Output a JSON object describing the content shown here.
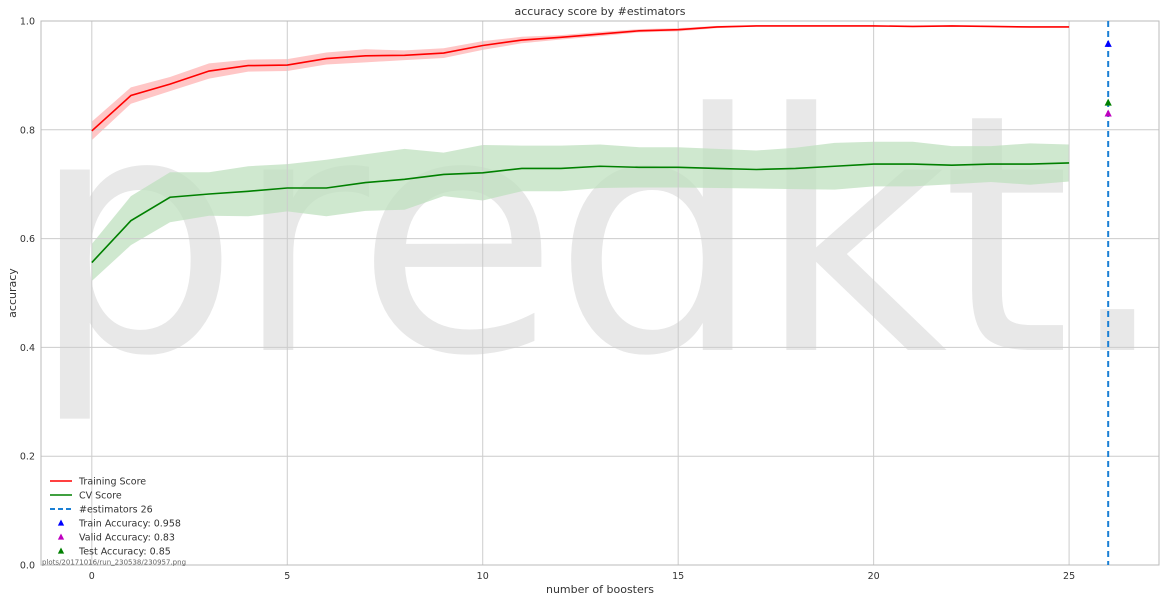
{
  "chart_data": {
    "type": "line",
    "title": "accuracy score by #estimators",
    "xlabel": "number of boosters",
    "ylabel": "accuracy",
    "xlim": [
      -1.3,
      27.3
    ],
    "ylim": [
      0.0,
      1.0
    ],
    "xticks": [
      0,
      5,
      10,
      15,
      20,
      25
    ],
    "yticks": [
      0.0,
      0.2,
      0.4,
      0.6,
      0.8,
      1.0
    ],
    "ytick_labels": [
      "0.0",
      "0.2",
      "0.4",
      "0.6",
      "0.8",
      "1.0"
    ],
    "grid": true,
    "legend_position": "lower-left",
    "x": [
      0,
      1,
      2,
      3,
      4,
      5,
      6,
      7,
      8,
      9,
      10,
      11,
      12,
      13,
      14,
      15,
      16,
      17,
      18,
      19,
      20,
      21,
      22,
      23,
      24,
      25
    ],
    "series": [
      {
        "name": "Training Score",
        "color": "#ff0000",
        "band_color": "#ffb3b3",
        "values": [
          0.798,
          0.863,
          0.884,
          0.908,
          0.918,
          0.919,
          0.931,
          0.936,
          0.937,
          0.941,
          0.955,
          0.965,
          0.97,
          0.976,
          0.982,
          0.984,
          0.989,
          0.991,
          0.991,
          0.991,
          0.991,
          0.99,
          0.991,
          0.99,
          0.989,
          0.989
        ],
        "upper": [
          0.815,
          0.878,
          0.897,
          0.922,
          0.929,
          0.93,
          0.942,
          0.948,
          0.946,
          0.95,
          0.963,
          0.971,
          0.974,
          0.98,
          0.985,
          0.987,
          0.991,
          0.992,
          0.992,
          0.992,
          0.992,
          0.991,
          0.992,
          0.991,
          0.99,
          0.99
        ],
        "lower": [
          0.781,
          0.848,
          0.871,
          0.894,
          0.907,
          0.908,
          0.92,
          0.924,
          0.928,
          0.932,
          0.947,
          0.959,
          0.966,
          0.972,
          0.979,
          0.981,
          0.987,
          0.99,
          0.99,
          0.99,
          0.99,
          0.989,
          0.99,
          0.989,
          0.988,
          0.988
        ]
      },
      {
        "name": "CV Score",
        "color": "#008000",
        "band_color": "#bfe0bf",
        "values": [
          0.556,
          0.633,
          0.676,
          0.682,
          0.687,
          0.693,
          0.693,
          0.703,
          0.709,
          0.718,
          0.721,
          0.729,
          0.729,
          0.733,
          0.731,
          0.731,
          0.729,
          0.727,
          0.729,
          0.733,
          0.737,
          0.737,
          0.735,
          0.737,
          0.737,
          0.739
        ],
        "upper": [
          0.59,
          0.678,
          0.722,
          0.722,
          0.733,
          0.737,
          0.745,
          0.755,
          0.765,
          0.758,
          0.772,
          0.771,
          0.771,
          0.773,
          0.768,
          0.768,
          0.765,
          0.762,
          0.767,
          0.776,
          0.778,
          0.778,
          0.77,
          0.77,
          0.775,
          0.773
        ],
        "lower": [
          0.522,
          0.588,
          0.63,
          0.642,
          0.641,
          0.65,
          0.641,
          0.651,
          0.653,
          0.678,
          0.67,
          0.687,
          0.687,
          0.693,
          0.694,
          0.694,
          0.693,
          0.692,
          0.691,
          0.69,
          0.696,
          0.696,
          0.7,
          0.704,
          0.699,
          0.705
        ]
      }
    ],
    "vline": {
      "name": "#estimators 26",
      "x": 26,
      "color": "#1a7fd4",
      "style": "dashed"
    },
    "markers": [
      {
        "name": "Train Accuracy: 0.958",
        "x": 26,
        "y": 0.958,
        "color": "#0000ff"
      },
      {
        "name": "Valid Accuracy: 0.83",
        "x": 26,
        "y": 0.83,
        "color": "#bf00bf"
      },
      {
        "name": "Test Accuracy: 0.85",
        "x": 26,
        "y": 0.85,
        "color": "#008000"
      }
    ],
    "watermark": "predkt.io",
    "footer": "plots/20171016/run_230538/230957.png"
  }
}
